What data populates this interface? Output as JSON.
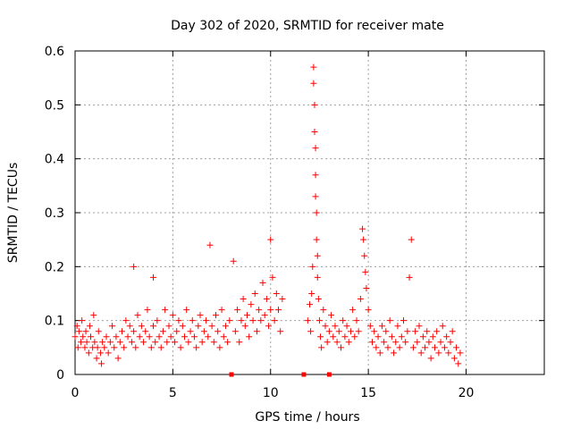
{
  "chart_data": {
    "type": "scatter",
    "title": "Day 302 of 2020, SRMTID for receiver mate",
    "xlabel": "GPS time / hours",
    "ylabel": "SRMTID / TECUs",
    "xlim": [
      0,
      24
    ],
    "ylim": [
      0,
      0.6
    ],
    "xticks": [
      0,
      5,
      10,
      15,
      20
    ],
    "yticks": [
      0,
      0.1,
      0.2,
      0.3,
      0.4,
      0.5,
      0.6
    ],
    "xtick_labels": [
      "0",
      "5",
      "10",
      "15",
      "20"
    ],
    "ytick_labels": [
      "0",
      "0.1",
      "0.2",
      "0.3",
      "0.4",
      "0.5",
      "0.6"
    ],
    "grid": true,
    "marker": "+",
    "color": "#ff0000",
    "series": [
      {
        "name": "SRMTID",
        "points": [
          [
            0.0,
            0.07
          ],
          [
            0.1,
            0.09
          ],
          [
            0.15,
            0.05
          ],
          [
            0.2,
            0.08
          ],
          [
            0.3,
            0.06
          ],
          [
            0.35,
            0.1
          ],
          [
            0.4,
            0.07
          ],
          [
            0.5,
            0.05
          ],
          [
            0.55,
            0.08
          ],
          [
            0.6,
            0.06
          ],
          [
            0.7,
            0.04
          ],
          [
            0.75,
            0.09
          ],
          [
            0.8,
            0.07
          ],
          [
            0.9,
            0.05
          ],
          [
            0.95,
            0.11
          ],
          [
            1.0,
            0.06
          ],
          [
            1.1,
            0.03
          ],
          [
            1.15,
            0.05
          ],
          [
            1.2,
            0.08
          ],
          [
            1.3,
            0.04
          ],
          [
            1.35,
            0.02
          ],
          [
            1.4,
            0.06
          ],
          [
            1.5,
            0.05
          ],
          [
            1.6,
            0.07
          ],
          [
            1.7,
            0.04
          ],
          [
            1.8,
            0.06
          ],
          [
            1.9,
            0.09
          ],
          [
            2.0,
            0.05
          ],
          [
            2.1,
            0.07
          ],
          [
            2.2,
            0.03
          ],
          [
            2.3,
            0.06
          ],
          [
            2.4,
            0.08
          ],
          [
            2.5,
            0.05
          ],
          [
            2.6,
            0.1
          ],
          [
            2.7,
            0.07
          ],
          [
            2.8,
            0.09
          ],
          [
            2.9,
            0.06
          ],
          [
            3.0,
            0.2
          ],
          [
            3.0,
            0.08
          ],
          [
            3.1,
            0.05
          ],
          [
            3.2,
            0.11
          ],
          [
            3.3,
            0.07
          ],
          [
            3.4,
            0.09
          ],
          [
            3.5,
            0.06
          ],
          [
            3.6,
            0.08
          ],
          [
            3.7,
            0.12
          ],
          [
            3.8,
            0.07
          ],
          [
            3.9,
            0.05
          ],
          [
            4.0,
            0.18
          ],
          [
            4.0,
            0.09
          ],
          [
            4.1,
            0.06
          ],
          [
            4.2,
            0.1
          ],
          [
            4.3,
            0.07
          ],
          [
            4.4,
            0.05
          ],
          [
            4.5,
            0.08
          ],
          [
            4.6,
            0.12
          ],
          [
            4.7,
            0.06
          ],
          [
            4.8,
            0.09
          ],
          [
            4.9,
            0.07
          ],
          [
            5.0,
            0.11
          ],
          [
            5.1,
            0.06
          ],
          [
            5.2,
            0.08
          ],
          [
            5.3,
            0.1
          ],
          [
            5.4,
            0.05
          ],
          [
            5.5,
            0.09
          ],
          [
            5.6,
            0.07
          ],
          [
            5.7,
            0.12
          ],
          [
            5.8,
            0.06
          ],
          [
            5.9,
            0.08
          ],
          [
            6.0,
            0.1
          ],
          [
            6.1,
            0.07
          ],
          [
            6.2,
            0.05
          ],
          [
            6.3,
            0.09
          ],
          [
            6.4,
            0.11
          ],
          [
            6.5,
            0.06
          ],
          [
            6.6,
            0.08
          ],
          [
            6.7,
            0.1
          ],
          [
            6.8,
            0.07
          ],
          [
            6.9,
            0.24
          ],
          [
            7.0,
            0.09
          ],
          [
            7.1,
            0.06
          ],
          [
            7.2,
            0.11
          ],
          [
            7.3,
            0.08
          ],
          [
            7.4,
            0.05
          ],
          [
            7.5,
            0.12
          ],
          [
            7.6,
            0.07
          ],
          [
            7.7,
            0.09
          ],
          [
            7.8,
            0.06
          ],
          [
            7.9,
            0.1
          ],
          [
            8.1,
            0.21
          ],
          [
            8.2,
            0.08
          ],
          [
            8.3,
            0.12
          ],
          [
            8.4,
            0.06
          ],
          [
            8.5,
            0.1
          ],
          [
            8.6,
            0.14
          ],
          [
            8.7,
            0.09
          ],
          [
            8.8,
            0.11
          ],
          [
            8.9,
            0.07
          ],
          [
            9.0,
            0.13
          ],
          [
            9.1,
            0.1
          ],
          [
            9.2,
            0.15
          ],
          [
            9.3,
            0.08
          ],
          [
            9.4,
            0.12
          ],
          [
            9.5,
            0.1
          ],
          [
            9.6,
            0.17
          ],
          [
            9.7,
            0.11
          ],
          [
            9.8,
            0.14
          ],
          [
            9.9,
            0.09
          ],
          [
            10.0,
            0.25
          ],
          [
            10.0,
            0.12
          ],
          [
            10.1,
            0.18
          ],
          [
            10.2,
            0.1
          ],
          [
            10.3,
            0.15
          ],
          [
            10.4,
            0.12
          ],
          [
            10.5,
            0.08
          ],
          [
            10.6,
            0.14
          ],
          [
            11.9,
            0.1
          ],
          [
            12.0,
            0.13
          ],
          [
            12.05,
            0.08
          ],
          [
            12.1,
            0.15
          ],
          [
            12.15,
            0.2
          ],
          [
            12.2,
            0.57
          ],
          [
            12.2,
            0.54
          ],
          [
            12.25,
            0.5
          ],
          [
            12.25,
            0.45
          ],
          [
            12.3,
            0.42
          ],
          [
            12.3,
            0.37
          ],
          [
            12.3,
            0.33
          ],
          [
            12.35,
            0.3
          ],
          [
            12.35,
            0.25
          ],
          [
            12.4,
            0.22
          ],
          [
            12.4,
            0.18
          ],
          [
            12.45,
            0.14
          ],
          [
            12.5,
            0.1
          ],
          [
            12.55,
            0.07
          ],
          [
            12.6,
            0.05
          ],
          [
            12.7,
            0.12
          ],
          [
            12.8,
            0.09
          ],
          [
            12.9,
            0.06
          ],
          [
            13.0,
            0.08
          ],
          [
            13.1,
            0.11
          ],
          [
            13.2,
            0.07
          ],
          [
            13.3,
            0.09
          ],
          [
            13.4,
            0.06
          ],
          [
            13.5,
            0.08
          ],
          [
            13.6,
            0.05
          ],
          [
            13.7,
            0.1
          ],
          [
            13.8,
            0.07
          ],
          [
            13.9,
            0.09
          ],
          [
            14.0,
            0.06
          ],
          [
            14.1,
            0.08
          ],
          [
            14.2,
            0.12
          ],
          [
            14.3,
            0.07
          ],
          [
            14.4,
            0.1
          ],
          [
            14.5,
            0.08
          ],
          [
            14.6,
            0.14
          ],
          [
            14.7,
            0.27
          ],
          [
            14.75,
            0.25
          ],
          [
            14.8,
            0.22
          ],
          [
            14.85,
            0.19
          ],
          [
            14.9,
            0.16
          ],
          [
            15.0,
            0.12
          ],
          [
            15.1,
            0.09
          ],
          [
            15.2,
            0.06
          ],
          [
            15.3,
            0.08
          ],
          [
            15.4,
            0.05
          ],
          [
            15.5,
            0.07
          ],
          [
            15.6,
            0.04
          ],
          [
            15.7,
            0.09
          ],
          [
            15.8,
            0.06
          ],
          [
            15.9,
            0.08
          ],
          [
            16.0,
            0.05
          ],
          [
            16.1,
            0.1
          ],
          [
            16.2,
            0.07
          ],
          [
            16.3,
            0.04
          ],
          [
            16.4,
            0.06
          ],
          [
            16.5,
            0.09
          ],
          [
            16.6,
            0.05
          ],
          [
            16.7,
            0.07
          ],
          [
            16.8,
            0.1
          ],
          [
            16.9,
            0.06
          ],
          [
            17.0,
            0.08
          ],
          [
            17.1,
            0.18
          ],
          [
            17.2,
            0.25
          ],
          [
            17.3,
            0.05
          ],
          [
            17.4,
            0.08
          ],
          [
            17.5,
            0.06
          ],
          [
            17.6,
            0.09
          ],
          [
            17.7,
            0.04
          ],
          [
            17.8,
            0.07
          ],
          [
            17.9,
            0.05
          ],
          [
            18.0,
            0.08
          ],
          [
            18.1,
            0.06
          ],
          [
            18.2,
            0.03
          ],
          [
            18.3,
            0.07
          ],
          [
            18.4,
            0.05
          ],
          [
            18.5,
            0.08
          ],
          [
            18.6,
            0.04
          ],
          [
            18.7,
            0.06
          ],
          [
            18.8,
            0.09
          ],
          [
            18.9,
            0.05
          ],
          [
            19.0,
            0.07
          ],
          [
            19.1,
            0.04
          ],
          [
            19.2,
            0.06
          ],
          [
            19.3,
            0.08
          ],
          [
            19.4,
            0.03
          ],
          [
            19.5,
            0.05
          ],
          [
            19.6,
            0.02
          ],
          [
            19.7,
            0.04
          ]
        ]
      }
    ],
    "gap_markers": [
      8.0,
      11.7,
      13.0
    ]
  }
}
